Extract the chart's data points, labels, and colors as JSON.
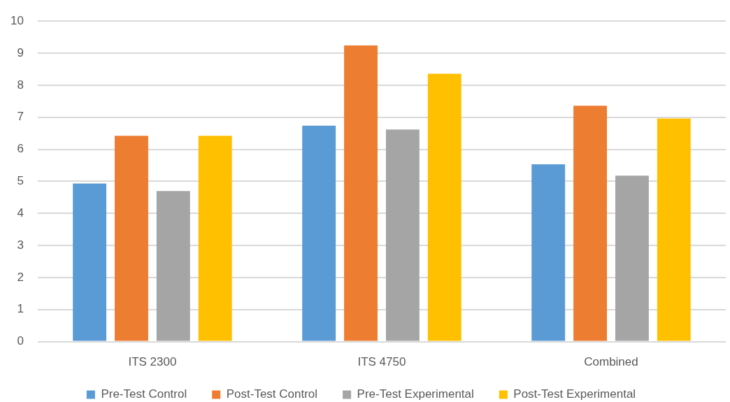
{
  "chart_data": {
    "type": "bar",
    "categories": [
      "ITS 2300",
      "ITS 4750",
      "Combined"
    ],
    "series": [
      {
        "name": "Pre-Test Control",
        "color": "#5b9bd5",
        "values": [
          4.93,
          6.74,
          5.53
        ]
      },
      {
        "name": "Post-Test Control",
        "color": "#ed7d31",
        "values": [
          6.42,
          9.24,
          7.36
        ]
      },
      {
        "name": "Pre-Test Experimental",
        "color": "#a5a5a5",
        "values": [
          4.7,
          6.62,
          5.18
        ]
      },
      {
        "name": "Post-Test Experimental",
        "color": "#ffc000",
        "values": [
          6.42,
          8.36,
          6.96
        ]
      }
    ],
    "ylim": [
      0,
      10
    ],
    "yticks": [
      0,
      1,
      2,
      3,
      4,
      5,
      6,
      7,
      8,
      9,
      10
    ],
    "grid": "y",
    "legend": "bottom"
  }
}
